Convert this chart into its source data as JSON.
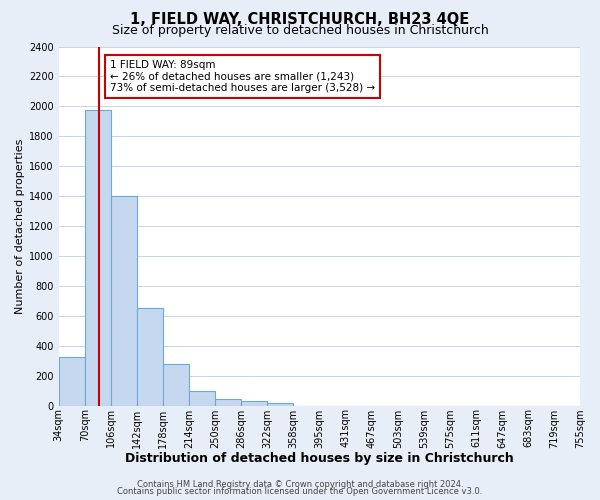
{
  "title": "1, FIELD WAY, CHRISTCHURCH, BH23 4QE",
  "subtitle": "Size of property relative to detached houses in Christchurch",
  "xlabel": "Distribution of detached houses by size in Christchurch",
  "ylabel": "Number of detached properties",
  "bin_edges": [
    34,
    70,
    106,
    142,
    178,
    214,
    250,
    286,
    322,
    358,
    395,
    431,
    467,
    503,
    539,
    575,
    611,
    647,
    683,
    719,
    755
  ],
  "bar_heights": [
    325,
    1975,
    1400,
    650,
    280,
    100,
    45,
    30,
    20,
    0,
    0,
    0,
    0,
    0,
    0,
    0,
    0,
    0,
    0,
    0
  ],
  "bar_color": "#c5d8f0",
  "bar_edgecolor": "#6aaad4",
  "property_line_x": 89,
  "property_line_color": "#cc0000",
  "annotation_text_line1": "1 FIELD WAY: 89sqm",
  "annotation_text_line2": "← 26% of detached houses are smaller (1,243)",
  "annotation_text_line3": "73% of semi-detached houses are larger (3,528) →",
  "annotation_box_facecolor": "#ffffff",
  "annotation_box_edgecolor": "#cc0000",
  "ylim_max": 2400,
  "yticks": [
    0,
    200,
    400,
    600,
    800,
    1000,
    1200,
    1400,
    1600,
    1800,
    2000,
    2200,
    2400
  ],
  "xtick_labels": [
    "34sqm",
    "70sqm",
    "106sqm",
    "142sqm",
    "178sqm",
    "214sqm",
    "250sqm",
    "286sqm",
    "322sqm",
    "358sqm",
    "395sqm",
    "431sqm",
    "467sqm",
    "503sqm",
    "539sqm",
    "575sqm",
    "611sqm",
    "647sqm",
    "683sqm",
    "719sqm",
    "755sqm"
  ],
  "footer1": "Contains HM Land Registry data © Crown copyright and database right 2024.",
  "footer2": "Contains public sector information licensed under the Open Government Licence v3.0.",
  "plot_bg_color": "#ffffff",
  "fig_bg_color": "#e8eef8",
  "grid_color": "#c8d4e8",
  "title_fontsize": 10.5,
  "subtitle_fontsize": 9,
  "ylabel_fontsize": 8,
  "xlabel_fontsize": 9,
  "tick_fontsize": 7,
  "footer_fontsize": 6
}
